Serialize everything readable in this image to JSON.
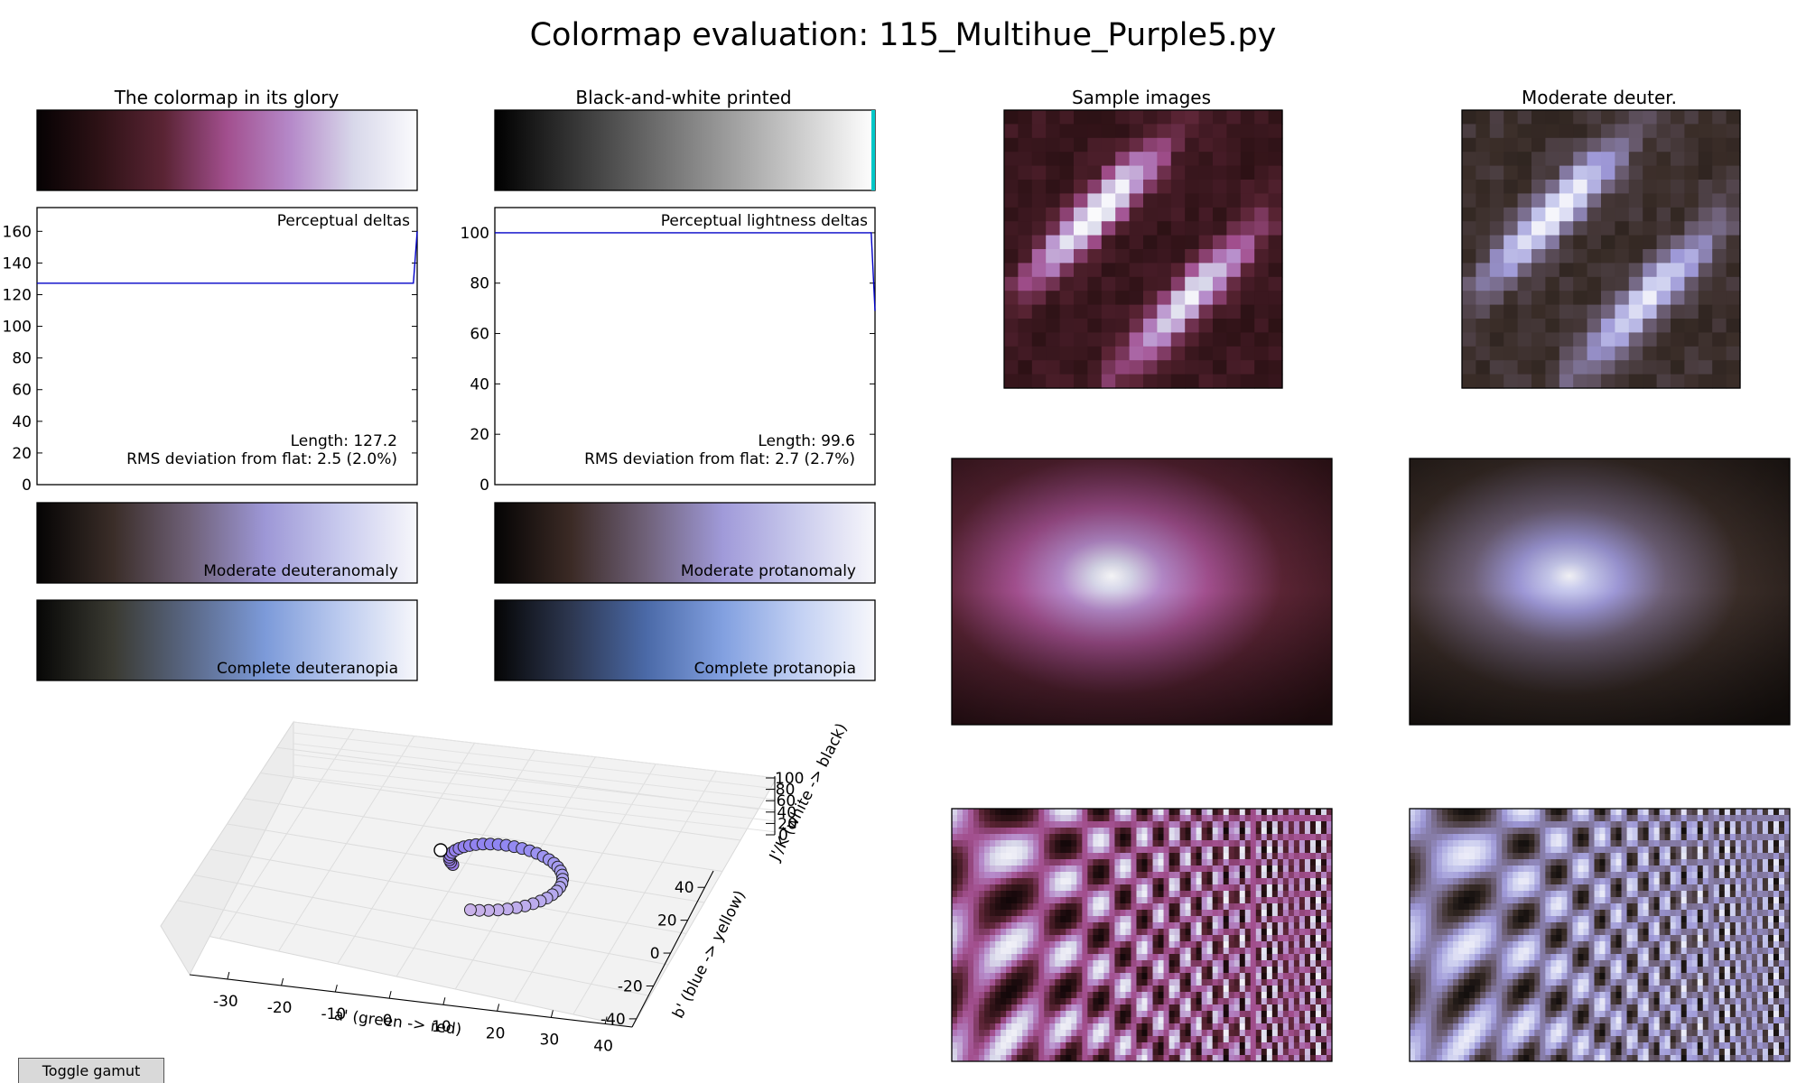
{
  "title": "Colormap evaluation: 115_Multihue_Purple5.py",
  "colors": {
    "cmap_stops": [
      "#060203",
      "#2e1216",
      "#5a2434",
      "#a24f8e",
      "#b589c9",
      "#d8d8ea",
      "#fbfbfd"
    ],
    "bw_stops": [
      "#000000",
      "#ffffff"
    ],
    "bw_end": "#00c8c8",
    "deutan_mod_stops": [
      "#050404",
      "#3a2d28",
      "#6f6178",
      "#9d97d6",
      "#c9cbee",
      "#f7f7fb"
    ],
    "protan_mod_stops": [
      "#050404",
      "#3b2a25",
      "#70627a",
      "#a09ad9",
      "#cacbed",
      "#f7f7fb"
    ],
    "deutan_full_stops": [
      "#070706",
      "#3a3a32",
      "#5a6886",
      "#7c9ad9",
      "#bccbef",
      "#f7f7fb"
    ],
    "protan_full_stops": [
      "#050505",
      "#2d3750",
      "#4b6aa8",
      "#82a0e0",
      "#c2d0f3",
      "#f7f7fb"
    ],
    "line": "#0000c8",
    "marker_edge": "#222222"
  },
  "panels": {
    "glory": "The colormap in its glory",
    "bw": "Black-and-white printed",
    "samples": "Sample images",
    "deuter": "Moderate deuter.",
    "deutan_mod": "Moderate deuteranomaly",
    "protan_mod": "Moderate protanomaly",
    "deutan_full": "Complete deuteranopia",
    "protan_full": "Complete protanopia"
  },
  "toggle_label": "Toggle gamut",
  "chart_data": [
    {
      "type": "line",
      "title": "Perceptual deltas",
      "x": [
        0,
        0.99,
        1.0
      ],
      "y": [
        127.2,
        127.2,
        160
      ],
      "ylim": [
        0,
        175
      ],
      "yticks": [
        0,
        20,
        40,
        60,
        80,
        100,
        120,
        140,
        160
      ],
      "notes": [
        "Length: 127.2",
        "RMS deviation from flat: 2.5 (2.0%)"
      ]
    },
    {
      "type": "line",
      "title": "Perceptual lightness deltas",
      "x": [
        0,
        0.99,
        1.0
      ],
      "y": [
        100,
        100,
        69
      ],
      "ylim": [
        0,
        110
      ],
      "yticks": [
        0,
        20,
        40,
        60,
        80,
        100
      ],
      "notes": [
        "Length: 99.6",
        "RMS deviation from flat: 2.7 (2.7%)"
      ]
    },
    {
      "type": "scatter",
      "xlabel": "a' (green -> red)",
      "ylabel": "b' (blue -> yellow)",
      "zlabel": "J'/K (white -> black)",
      "xticks": [
        -30,
        -20,
        -10,
        0,
        10,
        20,
        30,
        40
      ],
      "yticks": [
        -40,
        -20,
        0,
        20,
        40
      ],
      "zticks": [
        0,
        20,
        40,
        60,
        80,
        100
      ]
    }
  ]
}
